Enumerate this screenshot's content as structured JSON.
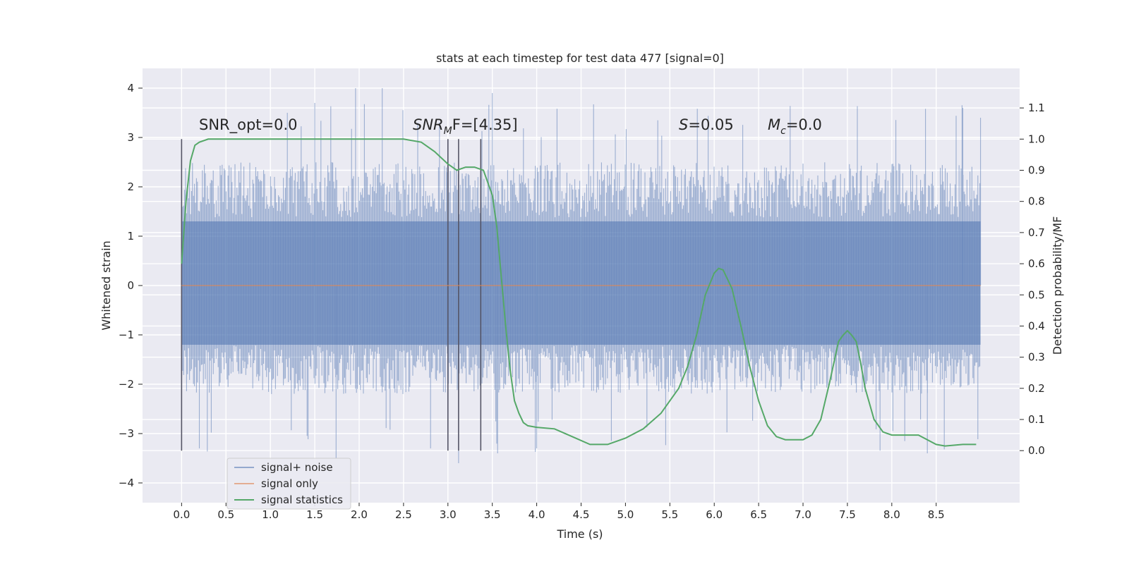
{
  "chart_data": {
    "type": "line",
    "title": "stats at each timestep for test data 477 [signal=0]",
    "xlabel": "Time (s)",
    "ylabel": "Whitened strain",
    "y2label": "Detection probability/MF",
    "xlim": [
      -0.44,
      9.44
    ],
    "ylim": [
      -4.4,
      4.4
    ],
    "y2lim": [
      -0.167,
      1.227
    ],
    "x_ticks": [
      "0.0",
      "0.5",
      "1.0",
      "1.5",
      "2.0",
      "2.5",
      "3.0",
      "3.5",
      "4.0",
      "4.5",
      "5.0",
      "5.5",
      "6.0",
      "6.5",
      "7.0",
      "7.5",
      "8.0",
      "8.5"
    ],
    "y_ticks": [
      "4",
      "3",
      "2",
      "1",
      "0",
      "−1",
      "−2",
      "−3",
      "−4"
    ],
    "y2_ticks": [
      "1.1",
      "1.0",
      "0.9",
      "0.8",
      "0.7",
      "0.6",
      "0.5",
      "0.4",
      "0.3",
      "0.2",
      "0.1",
      "0.0"
    ],
    "grid": true,
    "annotations": {
      "snr_opt": "SNR_opt=0.0",
      "snr_mf_main": "SNR",
      "snr_mf_sub": "M",
      "snr_mf_rest": "F=[4.35]",
      "s_main": "S",
      "s_rest": "=0.05",
      "mc_main": "M",
      "mc_sub": "c",
      "mc_rest": "=0.0"
    },
    "vertical_markers": [
      0.0,
      3.0,
      3.12,
      3.37
    ],
    "series": [
      {
        "name": "signal+ noise",
        "color": "#4c72b0",
        "style": "noise",
        "x_range": [
          0.0,
          9.0
        ],
        "typical_range": [
          -2.2,
          2.5
        ],
        "extreme_range": [
          -3.6,
          4.0
        ],
        "peaks": [
          [
            1.96,
            4.0
          ],
          [
            2.26,
            4.0
          ],
          [
            3.5,
            3.9
          ],
          [
            1.5,
            3.7
          ],
          [
            8.8,
            3.6
          ],
          [
            9.0,
            3.4
          ],
          [
            3.12,
            -3.6
          ],
          [
            1.74,
            -3.5
          ],
          [
            3.56,
            -3.4
          ],
          [
            8.4,
            -3.4
          ],
          [
            4.0,
            -3.3
          ],
          [
            0.2,
            -3.3
          ]
        ]
      },
      {
        "name": "signal only",
        "color": "#dd8452",
        "x": [
          0.0,
          9.0
        ],
        "y": [
          0.0,
          0.0
        ]
      },
      {
        "name": "signal statistics",
        "color": "#55a868",
        "axis": "right",
        "x": [
          0.0,
          0.05,
          0.1,
          0.15,
          0.2,
          0.3,
          0.5,
          1.0,
          1.5,
          2.0,
          2.5,
          2.7,
          2.85,
          3.0,
          3.1,
          3.2,
          3.3,
          3.4,
          3.5,
          3.55,
          3.6,
          3.65,
          3.7,
          3.75,
          3.8,
          3.85,
          3.9,
          4.0,
          4.2,
          4.4,
          4.6,
          4.8,
          5.0,
          5.2,
          5.4,
          5.6,
          5.7,
          5.8,
          5.9,
          6.0,
          6.05,
          6.1,
          6.2,
          6.3,
          6.4,
          6.5,
          6.6,
          6.7,
          6.8,
          7.0,
          7.1,
          7.2,
          7.3,
          7.4,
          7.45,
          7.5,
          7.55,
          7.6,
          7.65,
          7.7,
          7.8,
          7.9,
          8.0,
          8.1,
          8.3,
          8.5,
          8.6,
          8.8,
          8.95
        ],
        "y": [
          0.6,
          0.8,
          0.93,
          0.98,
          0.99,
          1.0,
          1.0,
          1.0,
          1.0,
          1.0,
          1.0,
          0.99,
          0.96,
          0.92,
          0.9,
          0.91,
          0.91,
          0.9,
          0.82,
          0.72,
          0.56,
          0.4,
          0.26,
          0.16,
          0.12,
          0.09,
          0.08,
          0.075,
          0.07,
          0.045,
          0.02,
          0.02,
          0.04,
          0.07,
          0.12,
          0.2,
          0.27,
          0.37,
          0.5,
          0.57,
          0.585,
          0.58,
          0.52,
          0.4,
          0.27,
          0.16,
          0.08,
          0.045,
          0.035,
          0.035,
          0.05,
          0.1,
          0.22,
          0.35,
          0.37,
          0.385,
          0.37,
          0.35,
          0.28,
          0.2,
          0.1,
          0.06,
          0.05,
          0.05,
          0.05,
          0.02,
          0.015,
          0.02,
          0.02
        ]
      }
    ],
    "legend_location": "lower-left"
  }
}
